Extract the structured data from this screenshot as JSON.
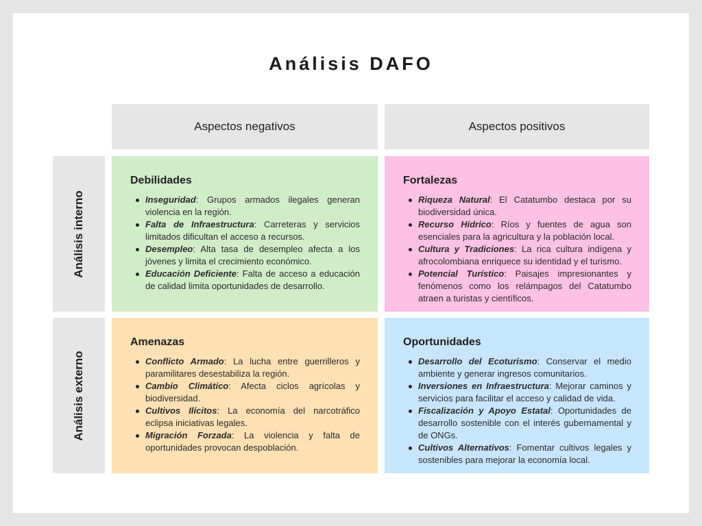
{
  "title": "Análisis DAFO",
  "columns": {
    "negative": "Aspectos negativos",
    "positive": "Aspectos positivos"
  },
  "rows": {
    "internal": "Análisis interno",
    "external": "Análisis externo"
  },
  "colors": {
    "debilidades": "#d0edc8",
    "fortalezas": "#fdc1e3",
    "amenazas": "#fde0b4",
    "oportunidades": "#c7e6fd",
    "headers": "#e6e6e6"
  },
  "quadrants": {
    "debilidades": {
      "title": "Debilidades",
      "items": [
        {
          "term": "Inseguridad",
          "text": ": Grupos armados ilegales generan violencia en la región."
        },
        {
          "term": "Falta de Infraestructura",
          "text": ": Carreteras y servicios limitados dificultan el acceso a recursos."
        },
        {
          "term": "Desempleo",
          "text": ": Alta tasa de desempleo afecta a los jóvenes y limita el crecimiento económico."
        },
        {
          "term": "Educación Deficiente",
          "text": ": Falta de acceso a educación de calidad limita oportunidades de desarrollo."
        }
      ]
    },
    "fortalezas": {
      "title": "Fortalezas",
      "items": [
        {
          "term": "Riqueza Natural",
          "text": ": El Catatumbo destaca por su biodiversidad única."
        },
        {
          "term": "Recurso Hídrico",
          "text": ": Ríos y fuentes de agua son esenciales para la agricultura y la población local."
        },
        {
          "term": "Cultura y Tradiciones",
          "text": ": La rica cultura indígena y afrocolombiana enriquece su identidad y el turismo."
        },
        {
          "term": "Potencial Turístico",
          "text": ": Paisajes impresionantes y fenómenos como los relámpagos del Catatumbo atraen a turistas y científicos."
        }
      ]
    },
    "amenazas": {
      "title": "Amenazas",
      "items": [
        {
          "term": "Conflicto Armado",
          "text": ": La lucha entre guerrilleros y paramilitares desestabiliza la región."
        },
        {
          "term": "Cambio Climático",
          "text": ": Afecta ciclos agrícolas y biodiversidad."
        },
        {
          "term": "Cultivos Ilícitos",
          "text": ": La economía del narcotráfico eclipsa iniciativas legales."
        },
        {
          "term": "Migración Forzada",
          "text": ": La violencia y falta de oportunidades provocan despoblación."
        }
      ]
    },
    "oportunidades": {
      "title": "Oportunidades",
      "items": [
        {
          "term": "Desarrollo del Ecoturismo",
          "text": ": Conservar el medio ambiente y generar ingresos comunitarios."
        },
        {
          "term": "Inversiones en Infraestructura",
          "text": ": Mejorar caminos y servicios para facilitar el acceso y calidad de vida."
        },
        {
          "term": "Fiscalización y Apoyo Estatal",
          "text": ": Oportunidades de desarrollo sostenible con el interés gubernamental y de ONGs."
        },
        {
          "term": "Cultivos Alternativos",
          "text": ": Fomentar cultivos legales y sostenibles para mejorar la economía local."
        }
      ]
    }
  }
}
